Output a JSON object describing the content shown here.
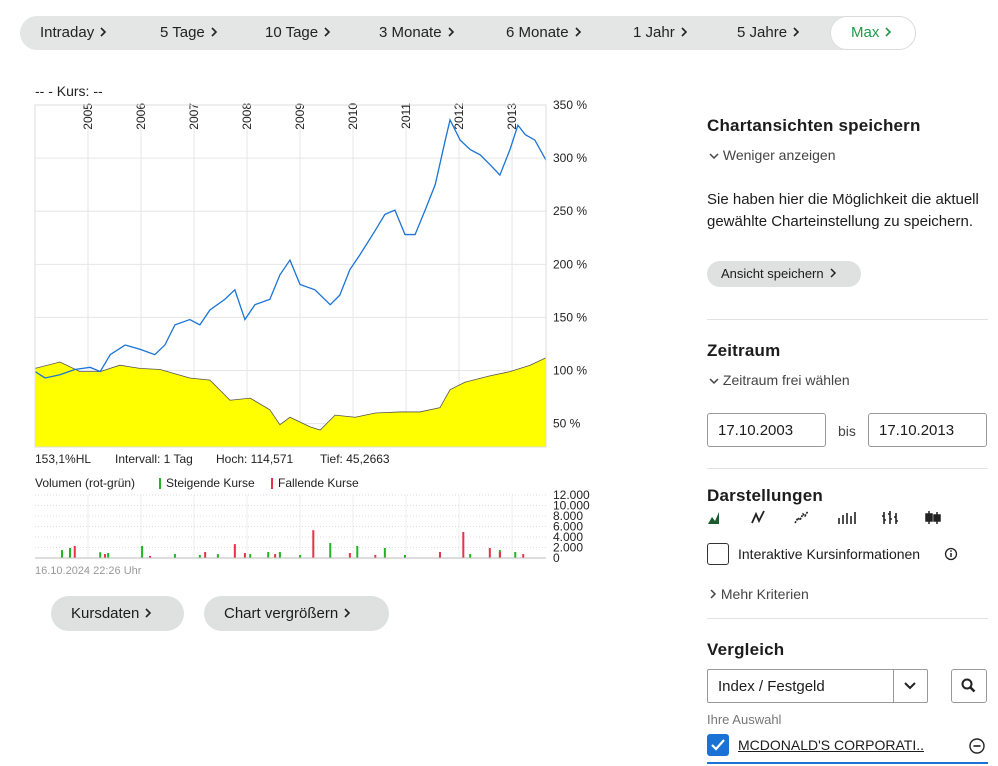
{
  "tabs": [
    "Intraday",
    "5 Tage",
    "10 Tage",
    "3 Monate",
    "6 Monate",
    "1 Jahr",
    "5 Jahre",
    "Max"
  ],
  "active_tab": 7,
  "chart": {
    "type": "line",
    "header": "--  - Kurs: --",
    "xlim": [
      2004,
      2013.64
    ],
    "xticks": [
      2005,
      2006,
      2007,
      2008,
      2009,
      2010,
      2011,
      2012,
      2013
    ],
    "ylim": [
      28,
      350
    ],
    "yticks": [
      {
        "value": 350,
        "label": "350 %"
      },
      {
        "value": 300,
        "label": "300 %"
      },
      {
        "value": 250,
        "label": "250 %"
      },
      {
        "value": 200,
        "label": "200 %"
      },
      {
        "value": 150,
        "label": "150 %"
      },
      {
        "value": 100,
        "label": "100 %"
      },
      {
        "value": 50,
        "label": "50 %"
      }
    ],
    "series": [
      {
        "color": "#ffff00",
        "fill": true,
        "x": [
          2004,
          2004.47,
          2004.85,
          2005.23,
          2005.6,
          2005.98,
          2006.36,
          2006.92,
          2007.3,
          2007.68,
          2008.06,
          2008.43,
          2008.62,
          2008.81,
          2009.19,
          2009.38,
          2009.66,
          2010.04,
          2010.42,
          2010.89,
          2011.26,
          2011.64,
          2011.83,
          2012.11,
          2012.58,
          2012.96,
          2013.34,
          2013.64
        ],
        "values": [
          102,
          108,
          99,
          99,
          105,
          102,
          101,
          93,
          91,
          72,
          74,
          63,
          49,
          56,
          47,
          44,
          58,
          56,
          60,
          61,
          61,
          65,
          82,
          89,
          95,
          99,
          105,
          112
        ]
      },
      {
        "color": "#1a74d6",
        "fill": false,
        "x": [
          2004,
          2004.19,
          2004.47,
          2004.75,
          2005.04,
          2005.23,
          2005.42,
          2005.7,
          2005.98,
          2006.26,
          2006.45,
          2006.64,
          2006.92,
          2007.11,
          2007.3,
          2007.58,
          2007.77,
          2007.96,
          2008.15,
          2008.43,
          2008.62,
          2008.81,
          2009,
          2009.28,
          2009.57,
          2009.75,
          2009.94,
          2010.13,
          2010.42,
          2010.6,
          2010.79,
          2010.98,
          2011.17,
          2011.36,
          2011.55,
          2011.74,
          2011.83,
          2012.02,
          2012.21,
          2012.4,
          2012.58,
          2012.77,
          2012.96,
          2013.11,
          2013.25,
          2013.43,
          2013.64
        ],
        "values": [
          99,
          93,
          96,
          101,
          103,
          99,
          115,
          124,
          120,
          115,
          124,
          143,
          148,
          143,
          157,
          167,
          176,
          148,
          162,
          167,
          190,
          204,
          181,
          176,
          162,
          171,
          195,
          209,
          232,
          247,
          251,
          228,
          228,
          251,
          275,
          317,
          336,
          317,
          308,
          303,
          294,
          284,
          308,
          331,
          322,
          317,
          298
        ]
      }
    ],
    "info": [
      "153,1%HL",
      "Intervall: 1 Tag",
      "Hoch: 114,571",
      "Tief: 45,2663"
    ],
    "volume": {
      "title": "Volumen (rot-grün)",
      "ylim": [
        0,
        12000
      ],
      "yticks": [
        {
          "value": 12000,
          "label": "12.000"
        },
        {
          "value": 10000,
          "label": "10.000"
        },
        {
          "value": 8000,
          "label": "8.000"
        },
        {
          "value": 6000,
          "label": "6.000"
        },
        {
          "value": 4000,
          "label": "4.000"
        },
        {
          "value": 2000,
          "label": "2.000"
        },
        0
      ],
      "series": [
        {
          "name": "Steigende Kurse",
          "color": "#21b524",
          "x": [
            2004.51,
            2004.66,
            2005.23,
            2005.38,
            2006.02,
            2006.64,
            2007.11,
            2007.45,
            2008.06,
            2008.4,
            2008.62,
            2009,
            2009.57,
            2010.08,
            2010.6,
            2010.98,
            2011.64,
            2012.21,
            2012.77,
            2013.06
          ],
          "values": [
            1500,
            1900,
            1100,
            950,
            2300,
            750,
            570,
            750,
            750,
            1150,
            1150,
            570,
            2850,
            2300,
            1900,
            570,
            750,
            750,
            1500,
            1150
          ]
        },
        {
          "name": "Fallende Kurse",
          "color": "#e8324a",
          "x": [
            2004.75,
            2005.32,
            2006.17,
            2007.21,
            2007.77,
            2007.96,
            2008.53,
            2009.25,
            2009.94,
            2010.42,
            2011.64,
            2012.08,
            2012.58,
            2012.77,
            2013.21
          ],
          "values": [
            2300,
            750,
            400,
            1150,
            2650,
            950,
            750,
            5300,
            950,
            570,
            1150,
            4950,
            1900,
            1150,
            750
          ]
        }
      ]
    },
    "timestamp": "16.10.2024 22:26 Uhr"
  },
  "buttons": [
    "Kursdaten",
    "Chart vergrößern"
  ],
  "sidebar": {
    "save": {
      "title": "Chartansichten speichern",
      "toggle": "Weniger anzeigen",
      "text": "Sie haben hier die Möglichkeit die aktuell gewählte Charteinstellung zu speichern.",
      "button": "Ansicht speichern"
    },
    "period": {
      "title": "Zeitraum",
      "toggle": "Zeitraum frei wählen",
      "from": "17.10.2003",
      "sep": "bis",
      "to": "17.10.2013"
    },
    "display": {
      "title": "Darstellungen",
      "checkbox": "Interaktive Kursinformationen",
      "more": "Mehr Kriterien"
    },
    "compare": {
      "title": "Vergleich",
      "select": "Index / Festgeld",
      "selection_label": "Ihre Auswahl",
      "selected": "MCDONALD'S CORPORATI.."
    }
  }
}
